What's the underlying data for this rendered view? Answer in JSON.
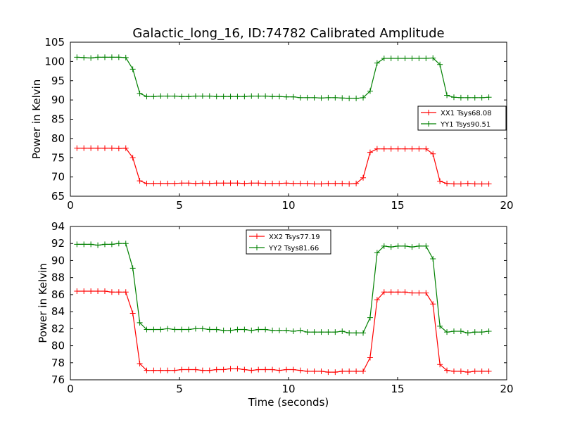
{
  "chart_data": [
    {
      "type": "line",
      "title": "Galactic_long_16, ID:74782 Calibrated Amplitude",
      "xlabel": "",
      "ylabel": "Power in Kelvin",
      "xlim": [
        0,
        20
      ],
      "ylim": [
        65,
        105
      ],
      "xticks": [
        "0",
        "5",
        "10",
        "15",
        "20"
      ],
      "yticks": [
        "65",
        "70",
        "75",
        "80",
        "85",
        "90",
        "95",
        "100",
        "105"
      ],
      "legend_position": "center-right",
      "x": [
        0.3,
        0.62,
        0.94,
        1.26,
        1.58,
        1.9,
        2.22,
        2.54,
        2.86,
        3.18,
        3.5,
        3.82,
        4.14,
        4.46,
        4.78,
        5.1,
        5.42,
        5.74,
        6.06,
        6.38,
        6.7,
        7.02,
        7.34,
        7.66,
        7.98,
        8.3,
        8.62,
        8.94,
        9.26,
        9.58,
        9.9,
        10.22,
        10.54,
        10.86,
        11.18,
        11.5,
        11.82,
        12.14,
        12.46,
        12.78,
        13.1,
        13.42,
        13.74,
        14.06,
        14.38,
        14.7,
        15.02,
        15.34,
        15.66,
        15.98,
        16.3,
        16.62,
        16.94,
        17.26,
        17.58,
        17.9,
        18.22,
        18.54,
        18.86,
        19.18
      ],
      "series": [
        {
          "name": "XX1 Tsys68.08",
          "color": "#ff0000",
          "values": [
            77.5,
            77.5,
            77.5,
            77.5,
            77.5,
            77.5,
            77.4,
            77.5,
            75.0,
            69.0,
            68.3,
            68.3,
            68.3,
            68.3,
            68.3,
            68.4,
            68.4,
            68.3,
            68.4,
            68.3,
            68.4,
            68.4,
            68.4,
            68.4,
            68.3,
            68.4,
            68.4,
            68.3,
            68.3,
            68.3,
            68.4,
            68.3,
            68.3,
            68.3,
            68.2,
            68.2,
            68.3,
            68.3,
            68.3,
            68.2,
            68.3,
            69.8,
            76.4,
            77.3,
            77.3,
            77.3,
            77.3,
            77.3,
            77.3,
            77.3,
            77.3,
            76.0,
            68.9,
            68.3,
            68.2,
            68.2,
            68.3,
            68.2,
            68.2,
            68.2
          ]
        },
        {
          "name": "YY1 Tsys90.51",
          "color": "#008000",
          "values": [
            101.1,
            101.0,
            100.9,
            101.1,
            101.1,
            101.1,
            101.1,
            101.0,
            98.0,
            91.7,
            90.9,
            90.9,
            91.0,
            91.0,
            91.0,
            90.9,
            90.9,
            91.0,
            91.0,
            91.0,
            90.9,
            90.9,
            90.9,
            90.9,
            90.9,
            91.0,
            91.0,
            91.0,
            90.9,
            90.9,
            90.8,
            90.8,
            90.6,
            90.6,
            90.6,
            90.5,
            90.6,
            90.6,
            90.5,
            90.4,
            90.4,
            90.6,
            92.3,
            99.6,
            100.8,
            100.8,
            100.8,
            100.8,
            100.8,
            100.8,
            100.8,
            100.9,
            99.2,
            91.2,
            90.7,
            90.6,
            90.6,
            90.6,
            90.6,
            90.7
          ]
        }
      ]
    },
    {
      "type": "line",
      "title": "",
      "xlabel": "Time (seconds)",
      "ylabel": "Power in Kelvin",
      "xlim": [
        0,
        20
      ],
      "ylim": [
        76,
        94
      ],
      "xticks": [
        "0",
        "5",
        "10",
        "15",
        "20"
      ],
      "yticks": [
        "76",
        "78",
        "80",
        "82",
        "84",
        "86",
        "88",
        "90",
        "92",
        "94"
      ],
      "legend_position": "top-center",
      "x": [
        0.3,
        0.62,
        0.94,
        1.26,
        1.58,
        1.9,
        2.22,
        2.54,
        2.86,
        3.18,
        3.5,
        3.82,
        4.14,
        4.46,
        4.78,
        5.1,
        5.42,
        5.74,
        6.06,
        6.38,
        6.7,
        7.02,
        7.34,
        7.66,
        7.98,
        8.3,
        8.62,
        8.94,
        9.26,
        9.58,
        9.9,
        10.22,
        10.54,
        10.86,
        11.18,
        11.5,
        11.82,
        12.14,
        12.46,
        12.78,
        13.1,
        13.42,
        13.74,
        14.06,
        14.38,
        14.7,
        15.02,
        15.34,
        15.66,
        15.98,
        16.3,
        16.62,
        16.94,
        17.26,
        17.58,
        17.9,
        18.22,
        18.54,
        18.86,
        19.18
      ],
      "series": [
        {
          "name": "XX2 Tsys77.19",
          "color": "#ff0000",
          "values": [
            86.4,
            86.4,
            86.4,
            86.4,
            86.4,
            86.3,
            86.3,
            86.3,
            83.8,
            77.9,
            77.1,
            77.1,
            77.1,
            77.1,
            77.1,
            77.2,
            77.2,
            77.2,
            77.1,
            77.1,
            77.2,
            77.2,
            77.3,
            77.3,
            77.2,
            77.1,
            77.2,
            77.2,
            77.2,
            77.1,
            77.2,
            77.2,
            77.1,
            77.0,
            77.0,
            77.0,
            76.9,
            76.9,
            77.0,
            77.0,
            77.0,
            77.0,
            78.6,
            85.4,
            86.3,
            86.3,
            86.3,
            86.3,
            86.2,
            86.2,
            86.2,
            84.9,
            77.8,
            77.1,
            77.0,
            77.0,
            76.9,
            77.0,
            77.0,
            77.0
          ]
        },
        {
          "name": "YY2 Tsys81.66",
          "color": "#008000",
          "values": [
            91.9,
            91.9,
            91.9,
            91.8,
            91.9,
            91.9,
            92.0,
            92.0,
            89.1,
            82.7,
            81.9,
            81.9,
            81.9,
            82.0,
            81.9,
            81.9,
            81.9,
            82.0,
            82.0,
            81.9,
            81.9,
            81.8,
            81.8,
            81.9,
            81.9,
            81.8,
            81.9,
            81.9,
            81.8,
            81.8,
            81.8,
            81.7,
            81.8,
            81.6,
            81.6,
            81.6,
            81.6,
            81.6,
            81.7,
            81.5,
            81.5,
            81.5,
            83.3,
            90.9,
            91.7,
            91.6,
            91.7,
            91.7,
            91.6,
            91.7,
            91.7,
            90.2,
            82.3,
            81.6,
            81.7,
            81.7,
            81.5,
            81.6,
            81.6,
            81.7
          ]
        }
      ]
    }
  ]
}
